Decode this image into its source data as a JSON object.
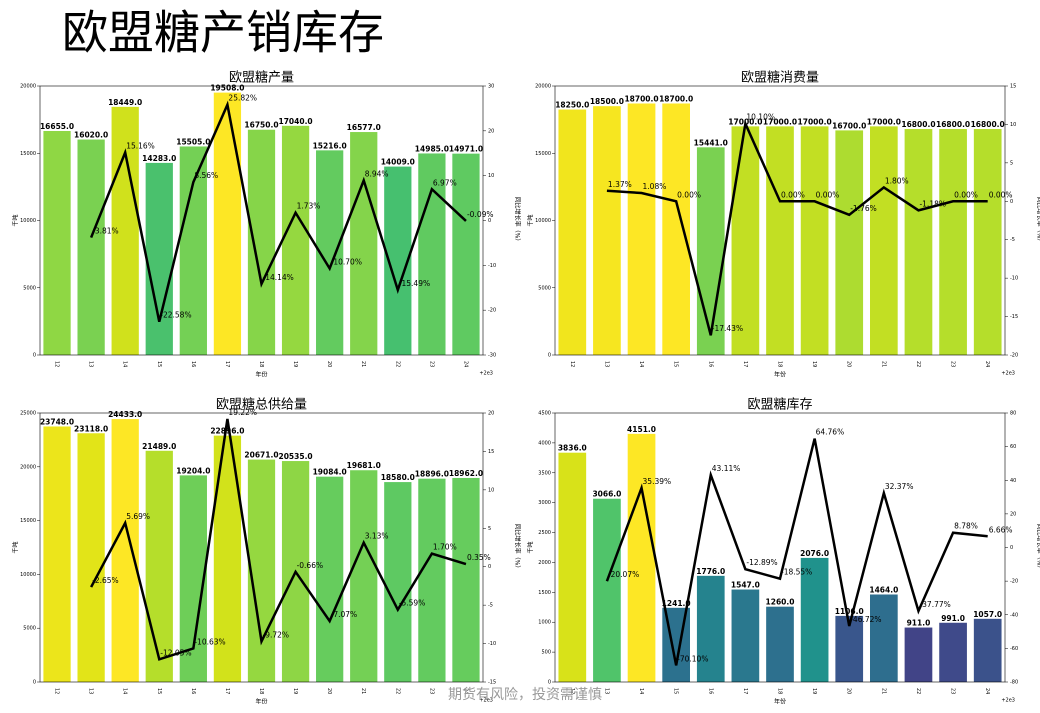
{
  "title": "欧盟糖产销库存",
  "footer": "期货有风险，投资需谨慎",
  "chart_data": [
    {
      "type": "bar",
      "title": "欧盟糖产量",
      "xlabel": "年份",
      "ylabel": "千吨",
      "y2label": "同比增长率（%）",
      "x_offset_label": "+2e3",
      "categories": [
        "12",
        "13",
        "14",
        "15",
        "16",
        "17",
        "18",
        "19",
        "20",
        "21",
        "22",
        "23",
        "24"
      ],
      "ylim": [
        0,
        20000
      ],
      "yticks": [
        0,
        5000,
        10000,
        15000,
        20000
      ],
      "y2lim": [
        -30,
        30
      ],
      "y2ticks": [
        -30,
        -20,
        -10,
        0,
        10,
        20,
        30
      ],
      "series": [
        {
          "values": [
            16655,
            16020,
            18449,
            14283,
            15505,
            19508,
            16750,
            17040,
            15216,
            16577,
            14009,
            14985,
            14971
          ],
          "value_labels": [
            "16655.0",
            "16020.0",
            "18449.0",
            "14283.0",
            "15505.0",
            "19508.0",
            "16750.0",
            "17040.0",
            "15216.0",
            "16577.0",
            "14009.0",
            "14985.0",
            "14971.0"
          ],
          "colors": [
            "#8fd744",
            "#7ad151",
            "#d0e11c",
            "#4ac16d",
            "#74d055",
            "#fde725",
            "#86d549",
            "#95d840",
            "#63cb5f",
            "#84d44b",
            "#46c06f",
            "#60ca60",
            "#5fca61"
          ]
        },
        {
          "type": "line",
          "axis": "y2",
          "color": "#000000",
          "values": [
            null,
            -3.81,
            15.16,
            -22.58,
            8.56,
            25.82,
            -14.14,
            1.73,
            -10.7,
            8.94,
            -15.49,
            6.97,
            -0.09
          ],
          "value_labels": [
            null,
            "-3.81%",
            "15.16%",
            "-22.58%",
            "8.56%",
            "25.82%",
            "-14.14%",
            "1.73%",
            "-10.70%",
            "8.94%",
            "-15.49%",
            "6.97%",
            "-0.09%"
          ]
        }
      ]
    },
    {
      "type": "bar",
      "title": "欧盟糖消费量",
      "xlabel": "年份",
      "ylabel": "千吨",
      "y2label": "同比增长率（%）",
      "x_offset_label": "+2e3",
      "categories": [
        "12",
        "13",
        "14",
        "15",
        "16",
        "17",
        "18",
        "19",
        "20",
        "21",
        "22",
        "23",
        "24"
      ],
      "ylim": [
        0,
        20000
      ],
      "yticks": [
        0,
        5000,
        10000,
        15000,
        20000
      ],
      "y2lim": [
        -20,
        15
      ],
      "y2ticks": [
        -20,
        -15,
        -10,
        -5,
        0,
        5,
        10,
        15
      ],
      "series": [
        {
          "values": [
            18250,
            18500,
            18700,
            18700,
            15441,
            17000,
            17000,
            17000,
            16700,
            17000,
            16800,
            16800,
            16800
          ],
          "value_labels": [
            "18250.0",
            "18500.0",
            "18700.0",
            "18700.0",
            "15441.0",
            "17000.0",
            "17000.0",
            "17000.0",
            "16700.0",
            "17000.0",
            "16800.0",
            "16800.0",
            "16800.0"
          ],
          "colors": [
            "#f1e51d",
            "#f6e620",
            "#fde725",
            "#fde725",
            "#7ad151",
            "#c2df23",
            "#c2df23",
            "#c2df23",
            "#addc30",
            "#c2df23",
            "#b5de2b",
            "#b5de2b",
            "#b5de2b"
          ]
        },
        {
          "type": "line",
          "axis": "y2",
          "color": "#000000",
          "values": [
            null,
            1.37,
            1.08,
            0.0,
            -17.43,
            10.1,
            0.0,
            0.0,
            -1.76,
            1.8,
            -1.18,
            0.0,
            0.0
          ],
          "value_labels": [
            null,
            "1.37%",
            "1.08%",
            "0.00%",
            "-17.43%",
            "10.10%",
            "0.00%",
            "0.00%",
            "-1.76%",
            "1.80%",
            "-1.18%",
            "0.00%",
            "0.00%"
          ]
        }
      ]
    },
    {
      "type": "bar",
      "title": "欧盟糖总供给量",
      "xlabel": "年份",
      "ylabel": "千吨",
      "y2label": "同比增长率（%）",
      "x_offset_label": "+2e3",
      "categories": [
        "12",
        "13",
        "14",
        "15",
        "16",
        "17",
        "18",
        "19",
        "20",
        "21",
        "22",
        "23",
        "24"
      ],
      "ylim": [
        0,
        25000
      ],
      "yticks": [
        0,
        5000,
        10000,
        15000,
        20000,
        25000
      ],
      "y2lim": [
        -15,
        20
      ],
      "y2ticks": [
        -15,
        -10,
        -5,
        0,
        5,
        10,
        15,
        20
      ],
      "series": [
        {
          "values": [
            23748,
            23118,
            24433,
            21489,
            19204,
            22896,
            20671,
            20535,
            19084,
            19681,
            18580,
            18896,
            18962
          ],
          "value_labels": [
            "23748.0",
            "23118.0",
            "24433.0",
            "21489.0",
            "19204.0",
            "22896.0",
            "20671.0",
            "20535.0",
            "19084.0",
            "19681.0",
            "18580.0",
            "18896.0",
            "18962.0"
          ],
          "colors": [
            "#ece51b",
            "#e2e418",
            "#fde725",
            "#b5de2b",
            "#6ece58",
            "#d2e21b",
            "#95d840",
            "#8ed645",
            "#66cc5d",
            "#74d055",
            "#5ec962",
            "#63cb5f",
            "#66cc5d"
          ]
        },
        {
          "type": "line",
          "axis": "y2",
          "color": "#000000",
          "values": [
            null,
            -2.65,
            5.69,
            -12.05,
            -10.63,
            19.22,
            -9.72,
            -0.66,
            -7.07,
            3.13,
            -5.59,
            1.7,
            0.35
          ],
          "value_labels": [
            null,
            "-2.65%",
            "5.69%",
            "-12.05%",
            "-10.63%",
            "19.22%",
            "-9.72%",
            "-0.66%",
            "-7.07%",
            "3.13%",
            "-5.59%",
            "1.70%",
            "0.35%"
          ]
        }
      ]
    },
    {
      "type": "bar",
      "title": "欧盟糖库存",
      "xlabel": "年份",
      "ylabel": "千吨",
      "y2label": "同比增长率（%）",
      "x_offset_label": "+2e3",
      "categories": [
        "12",
        "13",
        "14",
        "15",
        "16",
        "17",
        "18",
        "19",
        "20",
        "21",
        "22",
        "23",
        "24"
      ],
      "ylim": [
        0,
        4500
      ],
      "yticks": [
        0,
        500,
        1000,
        1500,
        2000,
        2500,
        3000,
        3500,
        4000,
        4500
      ],
      "y2lim": [
        -80,
        80
      ],
      "y2ticks": [
        -80,
        -60,
        -40,
        -20,
        0,
        20,
        40,
        60,
        80
      ],
      "series": [
        {
          "values": [
            3836,
            3066,
            4151,
            1241,
            1776,
            1547,
            1260,
            2076,
            1106,
            1464,
            911,
            991,
            1057
          ],
          "value_labels": [
            "3836.0",
            "3066.0",
            "4151.0",
            "1241.0",
            "1776.0",
            "1547.0",
            "1260.0",
            "2076.0",
            "1106.0",
            "1464.0",
            "911.0",
            "991.0",
            "1057.0"
          ],
          "colors": [
            "#d8e219",
            "#50c46a",
            "#fde725",
            "#2c718e",
            "#25838e",
            "#2a788e",
            "#2d708e",
            "#20928c",
            "#39568c",
            "#2e6e8e",
            "#414487",
            "#3f4a8a",
            "#3b528b"
          ]
        },
        {
          "type": "line",
          "axis": "y2",
          "color": "#000000",
          "values": [
            null,
            -20.07,
            35.39,
            -70.1,
            43.11,
            -12.89,
            -18.55,
            64.76,
            -46.72,
            32.37,
            -37.77,
            8.78,
            6.66
          ],
          "value_labels": [
            null,
            "-20.07%",
            "35.39%",
            "-70.10%",
            "43.11%",
            "-12.89%",
            "-18.55%",
            "64.76%",
            "-46.72%",
            "32.37%",
            "-37.77%",
            "8.78%",
            "6.66%"
          ]
        }
      ]
    }
  ]
}
